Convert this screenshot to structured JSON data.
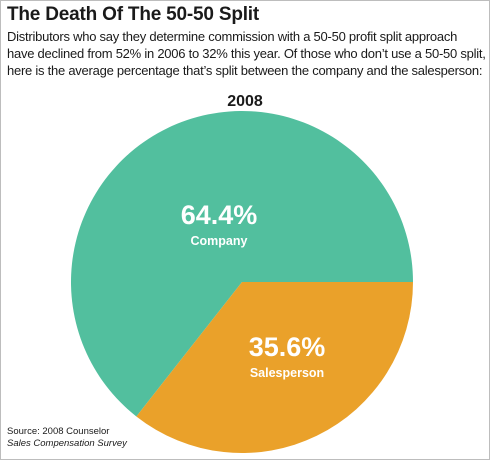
{
  "header": {
    "title": "The Death Of The 50-50 Split",
    "subtitle": "Distributors who say they determine commission with a 50-50 profit split approach have declined from 52% in 2006 to 32% this year. Of those who don’t use a 50-50 split, here is the average percentage that’s split between the company and the salesperson:"
  },
  "source": {
    "line1": "Source: 2008 Counselor",
    "line2": "Sales Compensation Survey"
  },
  "chart_data": {
    "type": "pie",
    "title": "2008",
    "slices": [
      {
        "label": "Company",
        "value": 64.4,
        "value_label": "64.4%",
        "color": "#52bf9e"
      },
      {
        "label": "Salesperson",
        "value": 35.6,
        "value_label": "35.6%",
        "color": "#eaa12a"
      }
    ]
  }
}
